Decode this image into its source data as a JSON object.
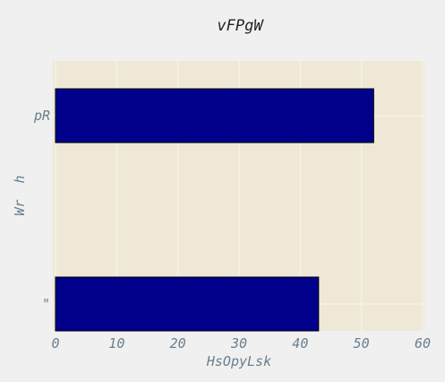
{
  "chart_data": {
    "type": "bar",
    "orientation": "horizontal",
    "title": "vFPgW",
    "xlabel": "HsOpyLsk",
    "ylabel": "Wr  h",
    "categories": [
      "pR",
      "\""
    ],
    "values": [
      52,
      43
    ],
    "xlim": [
      0,
      60
    ],
    "xticks": [
      0,
      10,
      20,
      30,
      40,
      50,
      60
    ],
    "grid": true,
    "legend": "none",
    "colors": {
      "bar": "#00008b",
      "bar_edge": "#000000",
      "plot_background": "#efe8d7",
      "figure_background": "#f0f0f0",
      "grid": "#ffffff",
      "text": "#6a7f8c",
      "title_text": "#222222"
    }
  }
}
